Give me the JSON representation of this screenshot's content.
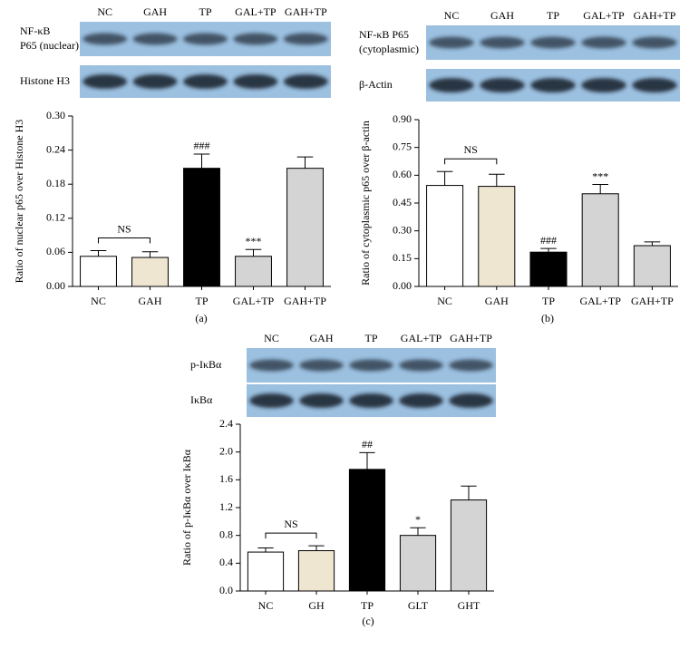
{
  "chart_data": [
    {
      "type": "bar",
      "panel_label": "(a)",
      "ylabel": "Ratio of nuclear p65 over Histone H3",
      "categories": [
        "NC",
        "GAH",
        "TP",
        "GAL+TP",
        "GAH+TP"
      ],
      "values": [
        0.053,
        0.051,
        0.208,
        0.053,
        0.208
      ],
      "errors": [
        0.01,
        0.01,
        0.025,
        0.012,
        0.02
      ],
      "colors": [
        "#ffffff",
        "#efe6d2",
        "#000000",
        "#d4d4d4",
        "#d4d4d4"
      ],
      "bar_annotations": [
        null,
        null,
        "###",
        "***",
        null
      ],
      "bracket": {
        "label": "NS",
        "between": [
          "NC",
          "GAH"
        ]
      },
      "ylim": [
        0,
        0.3
      ],
      "yticks": [
        {
          "value": 0,
          "label": "0.00"
        },
        {
          "value": 0.06,
          "label": "0.06"
        },
        {
          "value": 0.12,
          "label": "0.12"
        },
        {
          "value": 0.18,
          "label": "0.18"
        },
        {
          "value": 0.24,
          "label": "0.24"
        },
        {
          "value": 0.3,
          "label": "0.30"
        }
      ],
      "blot": {
        "lanes": [
          "NC",
          "GAH",
          "TP",
          "GAL+TP",
          "GAH+TP"
        ],
        "rows": [
          [
            "NF-κB",
            "P65 (nuclear)"
          ],
          [
            "Histone H3"
          ]
        ]
      }
    },
    {
      "type": "bar",
      "panel_label": "(b)",
      "ylabel": "Ratio of cytoplasmic p65 over β-actin",
      "categories": [
        "NC",
        "GAH",
        "TP",
        "GAL+TP",
        "GAH+TP"
      ],
      "values": [
        0.545,
        0.54,
        0.185,
        0.5,
        0.22
      ],
      "errors": [
        0.075,
        0.065,
        0.02,
        0.05,
        0.02
      ],
      "colors": [
        "#ffffff",
        "#efe6d2",
        "#000000",
        "#d4d4d4",
        "#d4d4d4"
      ],
      "bar_annotations": [
        null,
        null,
        "###",
        "***",
        null
      ],
      "bracket": {
        "label": "NS",
        "between": [
          "NC",
          "GAH"
        ]
      },
      "ylim": [
        0,
        0.9
      ],
      "yticks": [
        {
          "value": 0,
          "label": "0.00"
        },
        {
          "value": 0.15,
          "label": "0.15"
        },
        {
          "value": 0.3,
          "label": "0.30"
        },
        {
          "value": 0.45,
          "label": "0.45"
        },
        {
          "value": 0.6,
          "label": "0.60"
        },
        {
          "value": 0.75,
          "label": "0.75"
        },
        {
          "value": 0.9,
          "label": "0.90"
        }
      ],
      "blot": {
        "lanes": [
          "NC",
          "GAH",
          "TP",
          "GAL+TP",
          "GAH+TP"
        ],
        "rows": [
          [
            "NF-κB P65",
            "(cytoplasmic)"
          ],
          [
            "β-Actin"
          ]
        ]
      }
    },
    {
      "type": "bar",
      "panel_label": "(c)",
      "ylabel": "Ratio of p-IκBα over IκBα",
      "categories": [
        "NC",
        "GH",
        "TP",
        "GLT",
        "GHT"
      ],
      "values": [
        0.56,
        0.58,
        1.75,
        0.8,
        1.31
      ],
      "errors": [
        0.06,
        0.07,
        0.24,
        0.11,
        0.2
      ],
      "colors": [
        "#ffffff",
        "#efe6d2",
        "#000000",
        "#d4d4d4",
        "#d4d4d4"
      ],
      "bar_annotations": [
        null,
        null,
        "##",
        "*",
        null
      ],
      "bracket": {
        "label": "NS",
        "between": [
          "NC",
          "GH"
        ]
      },
      "ylim": [
        0,
        2.4
      ],
      "yticks": [
        {
          "value": 0,
          "label": "0.0"
        },
        {
          "value": 0.4,
          "label": "0.4"
        },
        {
          "value": 0.8,
          "label": "0.8"
        },
        {
          "value": 1.2,
          "label": "1.2"
        },
        {
          "value": 1.6,
          "label": "1.6"
        },
        {
          "value": 2.0,
          "label": "2.0"
        },
        {
          "value": 2.4,
          "label": "2.4"
        }
      ],
      "blot": {
        "lanes": [
          "NC",
          "GAH",
          "TP",
          "GAL+TP",
          "GAH+TP"
        ],
        "rows": [
          [
            "p-IκBα"
          ],
          [
            "IκBα"
          ]
        ]
      }
    }
  ]
}
